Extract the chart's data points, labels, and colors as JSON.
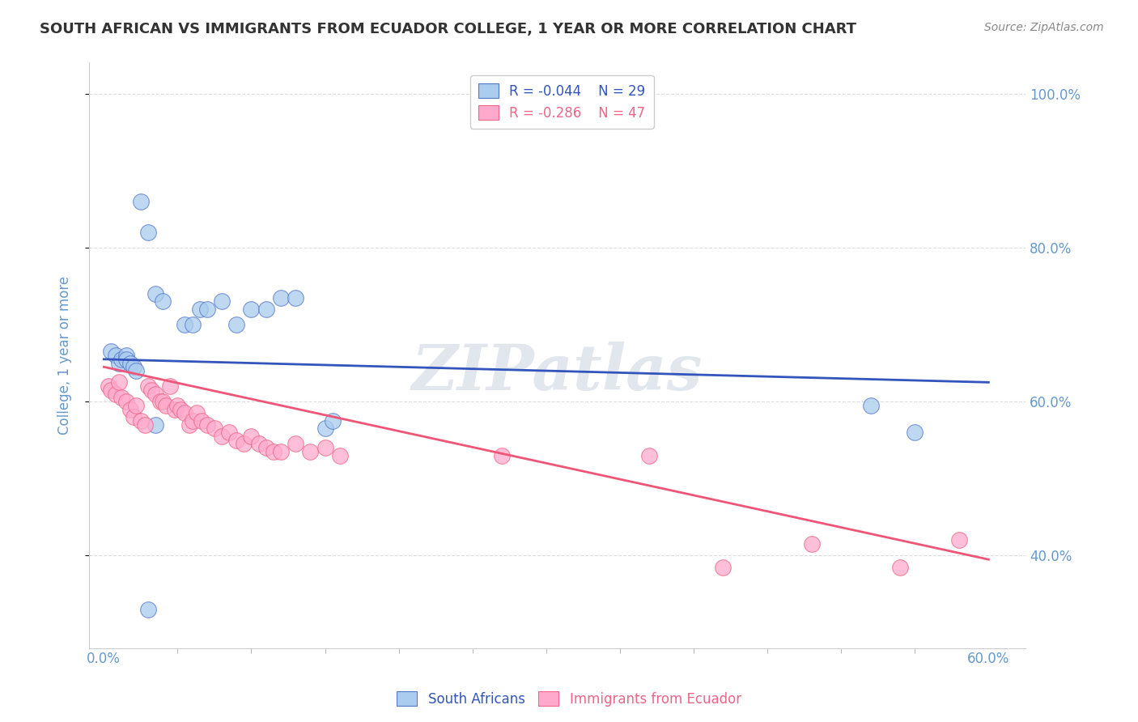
{
  "title": "SOUTH AFRICAN VS IMMIGRANTS FROM ECUADOR COLLEGE, 1 YEAR OR MORE CORRELATION CHART",
  "source": "Source: ZipAtlas.com",
  "ylabel": "College, 1 year or more",
  "watermark": "ZIPatlas",
  "legend_blue_r": "R = -0.044",
  "legend_blue_n": "N = 29",
  "legend_pink_r": "R = -0.286",
  "legend_pink_n": "N = 47",
  "legend_blue_label": "South Africans",
  "legend_pink_label": "Immigrants from Ecuador",
  "blue_scatter_x": [
    0.005,
    0.008,
    0.01,
    0.012,
    0.015,
    0.015,
    0.018,
    0.02,
    0.022,
    0.025,
    0.03,
    0.035,
    0.04,
    0.055,
    0.06,
    0.065,
    0.07,
    0.08,
    0.09,
    0.1,
    0.11,
    0.12,
    0.13,
    0.15,
    0.155,
    0.03,
    0.035,
    0.52,
    0.55
  ],
  "blue_scatter_y": [
    0.665,
    0.66,
    0.65,
    0.655,
    0.66,
    0.655,
    0.65,
    0.645,
    0.64,
    0.86,
    0.82,
    0.74,
    0.73,
    0.7,
    0.7,
    0.72,
    0.72,
    0.73,
    0.7,
    0.72,
    0.72,
    0.735,
    0.735,
    0.565,
    0.575,
    0.33,
    0.57,
    0.595,
    0.56
  ],
  "pink_scatter_x": [
    0.003,
    0.005,
    0.008,
    0.01,
    0.012,
    0.015,
    0.018,
    0.02,
    0.022,
    0.025,
    0.028,
    0.03,
    0.032,
    0.035,
    0.038,
    0.04,
    0.042,
    0.045,
    0.048,
    0.05,
    0.052,
    0.055,
    0.058,
    0.06,
    0.063,
    0.066,
    0.07,
    0.075,
    0.08,
    0.085,
    0.09,
    0.095,
    0.1,
    0.105,
    0.11,
    0.115,
    0.12,
    0.13,
    0.14,
    0.15,
    0.16,
    0.27,
    0.37,
    0.42,
    0.48,
    0.54,
    0.58
  ],
  "pink_scatter_y": [
    0.62,
    0.615,
    0.61,
    0.625,
    0.605,
    0.6,
    0.59,
    0.58,
    0.595,
    0.575,
    0.57,
    0.62,
    0.615,
    0.61,
    0.6,
    0.6,
    0.595,
    0.62,
    0.59,
    0.595,
    0.59,
    0.585,
    0.57,
    0.575,
    0.585,
    0.575,
    0.57,
    0.565,
    0.555,
    0.56,
    0.55,
    0.545,
    0.555,
    0.545,
    0.54,
    0.535,
    0.535,
    0.545,
    0.535,
    0.54,
    0.53,
    0.53,
    0.53,
    0.385,
    0.415,
    0.385,
    0.42
  ],
  "blue_line_x0": 0.0,
  "blue_line_y0": 0.655,
  "blue_line_x1": 0.6,
  "blue_line_y1": 0.625,
  "pink_line_x0": 0.0,
  "pink_line_y0": 0.645,
  "pink_line_x1": 0.6,
  "pink_line_y1": 0.395,
  "xlim": [
    -0.01,
    0.625
  ],
  "ylim": [
    0.28,
    1.04
  ],
  "x_ticks": [
    0.0,
    0.6
  ],
  "y_ticks": [
    0.4,
    0.6,
    0.8,
    1.0
  ],
  "blue_color": "#AACCEE",
  "pink_color": "#FFAACC",
  "blue_edge_color": "#5577CC",
  "pink_edge_color": "#EE6688",
  "blue_line_color": "#3355BB",
  "pink_line_color": "#EE5577",
  "title_color": "#333333",
  "axis_tick_color": "#6699CC",
  "grid_color": "#DDDDDD",
  "background_color": "#FFFFFF",
  "watermark_color": "#AABBCC",
  "source_color": "#888888"
}
